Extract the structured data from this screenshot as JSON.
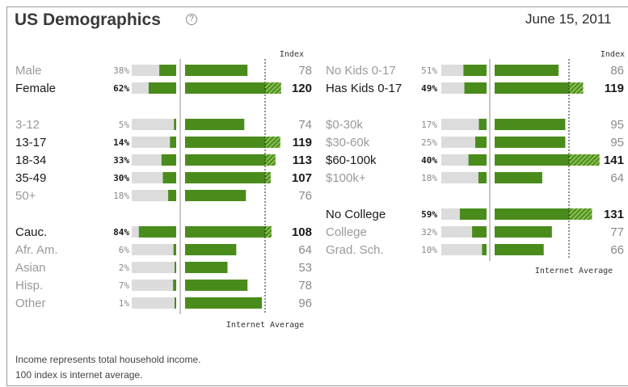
{
  "header": {
    "title": "US Demographics",
    "help_icon": "question-circle-icon",
    "date": "June 15, 2011"
  },
  "footnotes": [
    "Income represents total household income.",
    "100 index is internet average."
  ],
  "colors": {
    "bar_green": "#4a8c1c",
    "hatch_light": "#8cbf55",
    "track_gray": "#dcdcdc",
    "divider": "#b5b5b5",
    "border": "#9a9a9a"
  },
  "chart_data": {
    "type": "bar",
    "index_header": "Index",
    "reference_label": "Internet Average",
    "reference_index": 100,
    "left_groups": [
      {
        "rows": [
          {
            "label": "Male",
            "percent": "38%",
            "index": 78,
            "highlight": false
          },
          {
            "label": "Female",
            "percent": "62%",
            "index": 120,
            "highlight": true
          }
        ]
      },
      {
        "rows": [
          {
            "label": "3-12",
            "percent": "5%",
            "index": 74,
            "highlight": false
          },
          {
            "label": "13-17",
            "percent": "14%",
            "index": 119,
            "highlight": true
          },
          {
            "label": "18-34",
            "percent": "33%",
            "index": 113,
            "highlight": true
          },
          {
            "label": "35-49",
            "percent": "30%",
            "index": 107,
            "highlight": true
          },
          {
            "label": "50+",
            "percent": "18%",
            "index": 76,
            "highlight": false
          }
        ]
      },
      {
        "rows": [
          {
            "label": "Cauc.",
            "percent": "84%",
            "index": 108,
            "highlight": true
          },
          {
            "label": "Afr. Am.",
            "percent": "6%",
            "index": 64,
            "highlight": false
          },
          {
            "label": "Asian",
            "percent": "2%",
            "index": 53,
            "highlight": false
          },
          {
            "label": "Hisp.",
            "percent": "7%",
            "index": 78,
            "highlight": false
          },
          {
            "label": "Other",
            "percent": "1%",
            "index": 96,
            "highlight": false
          }
        ]
      }
    ],
    "right_groups": [
      {
        "rows": [
          {
            "label": "No Kids 0-17",
            "percent": "51%",
            "index": 86,
            "highlight": false
          },
          {
            "label": "Has Kids 0-17",
            "percent": "49%",
            "index": 119,
            "highlight": true
          }
        ]
      },
      {
        "rows": [
          {
            "label": "$0-30k",
            "percent": "17%",
            "index": 95,
            "highlight": false
          },
          {
            "label": "$30-60k",
            "percent": "25%",
            "index": 95,
            "highlight": false
          },
          {
            "label": "$60-100k",
            "percent": "40%",
            "index": 141,
            "highlight": true
          },
          {
            "label": "$100k+",
            "percent": "18%",
            "index": 64,
            "highlight": false
          }
        ]
      },
      {
        "rows": [
          {
            "label": "No College",
            "percent": "59%",
            "index": 131,
            "highlight": true
          },
          {
            "label": "College",
            "percent": "32%",
            "index": 77,
            "highlight": false
          },
          {
            "label": "Grad. Sch.",
            "percent": "10%",
            "index": 66,
            "highlight": false
          }
        ]
      }
    ]
  }
}
